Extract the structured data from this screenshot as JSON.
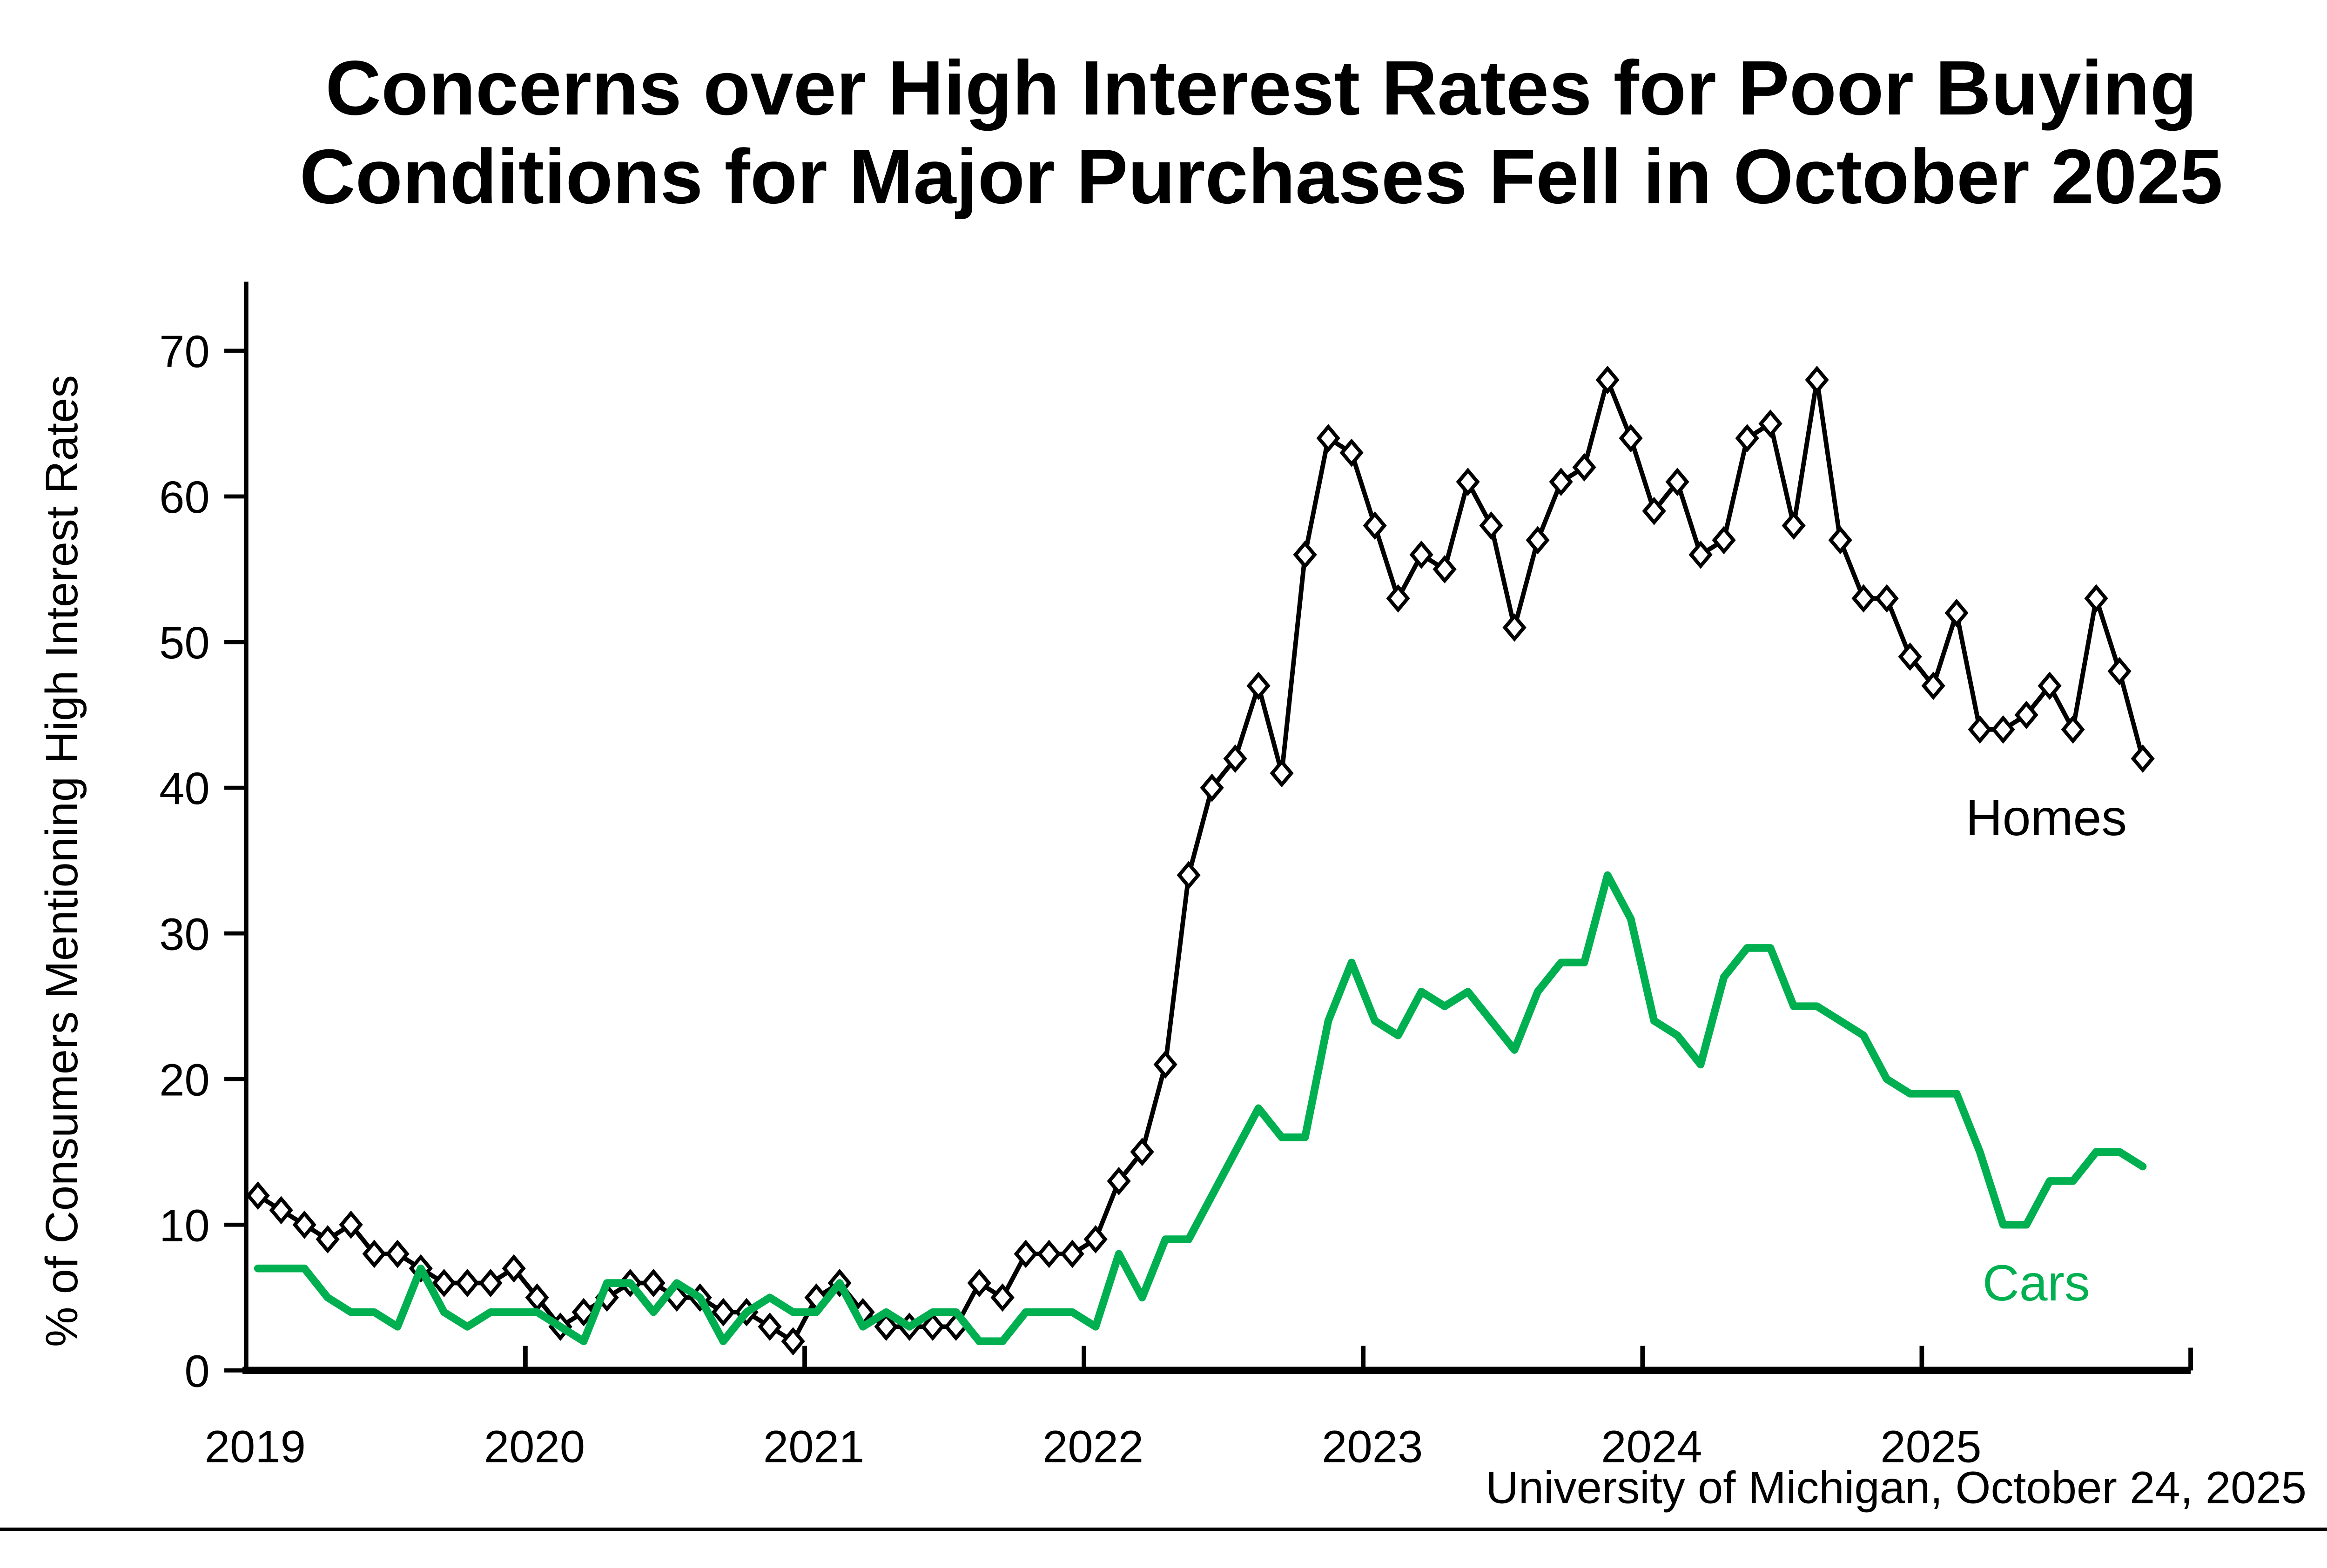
{
  "title": {
    "line1": "Concerns over High Interest Rates for Poor Buying",
    "line2": "Conditions for Major Purchases Fell in October 2025"
  },
  "source": "University of Michigan, October 24, 2025",
  "y_axis": {
    "label": "% of Consumers Mentioning High Interest Rates",
    "ticks": [
      0,
      10,
      20,
      30,
      40,
      50,
      60,
      70
    ]
  },
  "x_axis": {
    "years": [
      "2019",
      "2020",
      "2021",
      "2022",
      "2023",
      "2024",
      "2025"
    ]
  },
  "series_labels": {
    "homes": "Homes",
    "cars": "Cars"
  },
  "colors": {
    "homes": "#000000",
    "cars": "#00B050",
    "background": "#ffffff"
  },
  "chart_data": {
    "type": "line",
    "title": "Concerns over High Interest Rates for Poor Buying Conditions for Major Purchases Fell in October 2025",
    "x_frequency": "monthly",
    "x_range": [
      "2019-01",
      "2025-10"
    ],
    "xlabel": "",
    "ylabel": "% of Consumers Mentioning High Interest Rates",
    "ylim": [
      0,
      70
    ],
    "grid": false,
    "legend": "direct-labels",
    "series": [
      {
        "name": "Homes",
        "color": "#000000",
        "marker": "open-diamond",
        "values": [
          12,
          11,
          10,
          9,
          10,
          8,
          8,
          7,
          6,
          6,
          6,
          7,
          5,
          3,
          4,
          5,
          6,
          6,
          5,
          5,
          4,
          4,
          3,
          2,
          5,
          6,
          4,
          3,
          3,
          3,
          3,
          6,
          5,
          8,
          8,
          8,
          9,
          13,
          15,
          21,
          34,
          40,
          42,
          47,
          41,
          56,
          64,
          63,
          58,
          53,
          56,
          55,
          61,
          58,
          51,
          57,
          61,
          62,
          68,
          64,
          59,
          61,
          56,
          57,
          64,
          65,
          58,
          68,
          57,
          53,
          53,
          49,
          47,
          52,
          44,
          44,
          45,
          47,
          44,
          53,
          48,
          42
        ]
      },
      {
        "name": "Cars",
        "color": "#00B050",
        "marker": "none",
        "values": [
          7,
          7,
          7,
          5,
          4,
          4,
          3,
          7,
          4,
          3,
          4,
          4,
          4,
          3,
          2,
          6,
          6,
          4,
          6,
          5,
          2,
          4,
          5,
          4,
          4,
          6,
          3,
          4,
          3,
          4,
          4,
          2,
          2,
          4,
          4,
          4,
          3,
          8,
          5,
          9,
          9,
          12,
          15,
          18,
          16,
          16,
          24,
          28,
          24,
          23,
          26,
          25,
          26,
          24,
          22,
          26,
          28,
          28,
          34,
          31,
          24,
          23,
          21,
          27,
          29,
          29,
          25,
          25,
          24,
          23,
          20,
          19,
          19,
          19,
          15,
          10,
          10,
          13,
          13,
          15,
          15,
          14
        ]
      }
    ]
  }
}
